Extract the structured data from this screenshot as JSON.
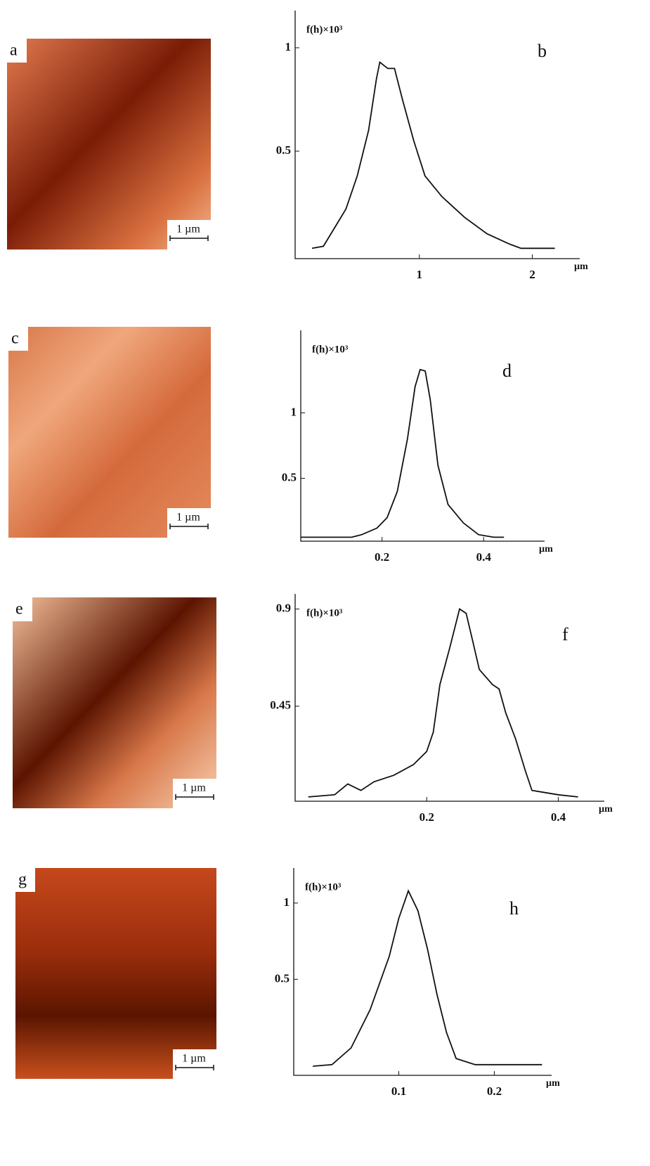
{
  "panels": [
    {
      "label": "a",
      "scale_bar": "1 µm"
    },
    {
      "label": "c",
      "scale_bar": "1 µm"
    },
    {
      "label": "e",
      "scale_bar": "1 µm"
    },
    {
      "label": "g",
      "scale_bar": "1 µm"
    }
  ],
  "chart_data": [
    {
      "type": "line",
      "y_label": "f(h)×10³",
      "annotation": "b",
      "x_label": "µm",
      "color": "#111111",
      "x": [
        0.05,
        0.15,
        0.25,
        0.35,
        0.45,
        0.55,
        0.62,
        0.65,
        0.72,
        0.78,
        0.85,
        0.95,
        1.05,
        1.2,
        1.4,
        1.6,
        1.8,
        1.9,
        2.0,
        2.2
      ],
      "values": [
        0.03,
        0.04,
        0.13,
        0.22,
        0.38,
        0.6,
        0.85,
        0.93,
        0.9,
        0.9,
        0.75,
        0.55,
        0.38,
        0.28,
        0.18,
        0.1,
        0.05,
        0.03,
        0.03,
        0.03
      ],
      "xlim": [
        -0.1,
        2.42
      ],
      "ylim": [
        -0.02,
        1.18
      ],
      "xticks": [
        1.0,
        2.0
      ],
      "yticks": [
        0.5,
        1.0
      ]
    },
    {
      "type": "line",
      "y_label": "f(h)×10³",
      "annotation": "d",
      "x_label": "µm",
      "color": "#111111",
      "x": [
        0.04,
        0.14,
        0.16,
        0.19,
        0.21,
        0.23,
        0.25,
        0.265,
        0.275,
        0.285,
        0.295,
        0.31,
        0.33,
        0.36,
        0.39,
        0.42,
        0.44
      ],
      "values": [
        0.05,
        0.05,
        0.07,
        0.12,
        0.2,
        0.4,
        0.8,
        1.2,
        1.33,
        1.32,
        1.1,
        0.6,
        0.3,
        0.16,
        0.07,
        0.05,
        0.05
      ],
      "xlim": [
        0.04,
        0.52
      ],
      "ylim": [
        0.02,
        1.63
      ],
      "xticks": [
        0.2,
        0.4
      ],
      "yticks": [
        0.5,
        1.0
      ]
    },
    {
      "type": "line",
      "y_label": "f(h)×10³",
      "annotation": "f",
      "x_label": "µm",
      "color": "#111111",
      "x": [
        0.02,
        0.06,
        0.08,
        0.1,
        0.12,
        0.15,
        0.18,
        0.2,
        0.21,
        0.22,
        0.235,
        0.25,
        0.26,
        0.27,
        0.28,
        0.3,
        0.31,
        0.32,
        0.335,
        0.35,
        0.36,
        0.38,
        0.4,
        0.43
      ],
      "values": [
        0.03,
        0.04,
        0.09,
        0.06,
        0.1,
        0.13,
        0.18,
        0.24,
        0.33,
        0.55,
        0.72,
        0.9,
        0.88,
        0.75,
        0.62,
        0.55,
        0.53,
        0.42,
        0.3,
        0.15,
        0.06,
        0.05,
        0.04,
        0.03
      ],
      "xlim": [
        0,
        0.47
      ],
      "ylim": [
        0.01,
        0.97
      ],
      "xticks": [
        0.2,
        0.4
      ],
      "yticks": [
        0.45,
        0.9
      ]
    },
    {
      "type": "line",
      "y_label": "f(h)×10³",
      "annotation": "h",
      "x_label": "µm",
      "color": "#111111",
      "x": [
        0.01,
        0.03,
        0.05,
        0.07,
        0.09,
        0.1,
        0.11,
        0.12,
        0.13,
        0.14,
        0.15,
        0.16,
        0.18,
        0.2,
        0.25
      ],
      "values": [
        -0.07,
        -0.06,
        0.05,
        0.3,
        0.65,
        0.9,
        1.08,
        0.95,
        0.7,
        0.4,
        0.15,
        -0.02,
        -0.06,
        -0.06,
        -0.06
      ],
      "xlim": [
        -0.01,
        0.26
      ],
      "ylim": [
        -0.13,
        1.23
      ],
      "xticks": [
        0.1,
        0.2
      ],
      "yticks": [
        0.5,
        1.0
      ]
    }
  ]
}
